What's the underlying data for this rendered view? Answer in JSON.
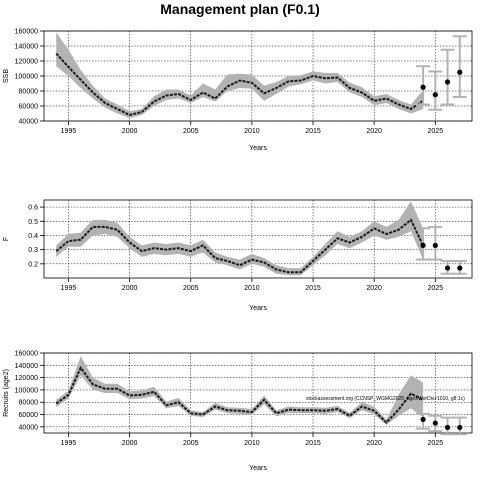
{
  "title": "Management plan (F0.1)",
  "chart_data": [
    {
      "type": "line",
      "xlabel": "Years",
      "ylabel": "SSB",
      "xlim": [
        1993,
        2028
      ],
      "ylim": [
        40000,
        160000
      ],
      "xticks": [
        1995,
        2000,
        2005,
        2010,
        2015,
        2020,
        2025
      ],
      "yticks": [
        40000,
        60000,
        80000,
        100000,
        120000,
        140000,
        160000
      ],
      "grid": true,
      "annotation": "",
      "history": {
        "x": [
          1994,
          1995,
          1996,
          1997,
          1998,
          1999,
          2000,
          2001,
          2002,
          2003,
          2004,
          2005,
          2006,
          2007,
          2008,
          2009,
          2010,
          2011,
          2012,
          2013,
          2014,
          2015,
          2016,
          2017,
          2018,
          2019,
          2020,
          2021,
          2022,
          2023,
          2024
        ],
        "y": [
          130000,
          112000,
          95000,
          78000,
          64000,
          56000,
          48000,
          52000,
          66000,
          74000,
          76000,
          68000,
          78000,
          70000,
          86000,
          94000,
          91000,
          77000,
          84000,
          93000,
          94000,
          100000,
          97000,
          98000,
          84000,
          78000,
          67000,
          70000,
          62000,
          56000,
          67000
        ],
        "lo": [
          113000,
          100000,
          84000,
          70000,
          58000,
          50000,
          44000,
          48000,
          60000,
          68000,
          70000,
          64000,
          72000,
          66000,
          80000,
          84000,
          83000,
          67000,
          76000,
          86000,
          89000,
          94000,
          90000,
          92000,
          78000,
          72000,
          61000,
          64000,
          56000,
          50000,
          56000
        ],
        "hi": [
          158000,
          135000,
          108000,
          87000,
          70000,
          62000,
          53000,
          56000,
          73000,
          82000,
          82000,
          74000,
          90000,
          82000,
          102000,
          103000,
          102000,
          87000,
          92000,
          100000,
          101000,
          106000,
          104000,
          104000,
          91000,
          85000,
          73000,
          76000,
          68000,
          62000,
          81000
        ]
      },
      "forecast": {
        "x": [
          2024,
          2025,
          2026,
          2027
        ],
        "y": [
          85000,
          75000,
          92000,
          105000
        ],
        "lo": [
          62000,
          55000,
          62000,
          72000
        ],
        "hi": [
          113000,
          106000,
          135000,
          153000
        ]
      }
    },
    {
      "type": "line",
      "xlabel": "Years",
      "ylabel": "F",
      "xlim": [
        1993,
        2028
      ],
      "ylim": [
        0.1,
        0.65
      ],
      "xticks": [
        1995,
        2000,
        2005,
        2010,
        2015,
        2020,
        2025
      ],
      "yticks": [
        0.2,
        0.3,
        0.4,
        0.5,
        0.6
      ],
      "grid": true,
      "annotation": "",
      "history": {
        "x": [
          1994,
          1995,
          1996,
          1997,
          1998,
          1999,
          2000,
          2001,
          2002,
          2003,
          2004,
          2005,
          2006,
          2007,
          2008,
          2009,
          2010,
          2011,
          2012,
          2013,
          2014,
          2015,
          2016,
          2017,
          2018,
          2019,
          2020,
          2021,
          2022,
          2023,
          2024
        ],
        "y": [
          0.29,
          0.36,
          0.37,
          0.46,
          0.46,
          0.44,
          0.35,
          0.29,
          0.31,
          0.3,
          0.31,
          0.29,
          0.33,
          0.24,
          0.22,
          0.19,
          0.23,
          0.21,
          0.16,
          0.14,
          0.14,
          0.22,
          0.3,
          0.38,
          0.35,
          0.39,
          0.45,
          0.41,
          0.44,
          0.51,
          0.33
        ],
        "lo": [
          0.25,
          0.32,
          0.32,
          0.4,
          0.41,
          0.39,
          0.31,
          0.25,
          0.27,
          0.26,
          0.27,
          0.25,
          0.28,
          0.21,
          0.19,
          0.16,
          0.2,
          0.18,
          0.13,
          0.12,
          0.12,
          0.19,
          0.26,
          0.34,
          0.31,
          0.35,
          0.4,
          0.37,
          0.39,
          0.43,
          0.23
        ],
        "hi": [
          0.33,
          0.41,
          0.42,
          0.51,
          0.51,
          0.49,
          0.39,
          0.33,
          0.35,
          0.34,
          0.35,
          0.33,
          0.37,
          0.28,
          0.25,
          0.23,
          0.27,
          0.24,
          0.19,
          0.17,
          0.17,
          0.25,
          0.34,
          0.43,
          0.39,
          0.43,
          0.5,
          0.46,
          0.51,
          0.64,
          0.45
        ]
      },
      "forecast": {
        "x": [
          2024,
          2025,
          2026,
          2027
        ],
        "y": [
          0.33,
          0.33,
          0.17,
          0.17
        ],
        "lo": [
          0.23,
          0.23,
          0.13,
          0.13
        ],
        "hi": [
          0.45,
          0.46,
          0.22,
          0.22
        ]
      }
    },
    {
      "type": "line",
      "xlabel": "Years",
      "ylabel": "Recruits (age2)",
      "xlim": [
        1993,
        2028
      ],
      "ylim": [
        30000,
        160000
      ],
      "xticks": [
        1995,
        2000,
        2005,
        2010,
        2015,
        2020,
        2025
      ],
      "yticks": [
        40000,
        60000,
        80000,
        100000,
        120000,
        140000,
        160000
      ],
      "grid": true,
      "annotation": "stockassessment.org (CCNSP_WGMG2025_age2WorDiv.r1010, g8:1c)",
      "history": {
        "x": [
          1994,
          1995,
          1996,
          1997,
          1998,
          1999,
          2000,
          2001,
          2002,
          2003,
          2004,
          2005,
          2006,
          2007,
          2008,
          2009,
          2010,
          2011,
          2012,
          2013,
          2014,
          2015,
          2016,
          2017,
          2018,
          2019,
          2020,
          2021,
          2022,
          2023,
          2024
        ],
        "y": [
          78000,
          92000,
          136000,
          109000,
          102000,
          102000,
          91000,
          92000,
          97000,
          75000,
          80000,
          62000,
          60000,
          73000,
          67000,
          66000,
          64000,
          84000,
          62000,
          68000,
          67000,
          67000,
          66000,
          69000,
          58000,
          73000,
          66000,
          47000,
          68000,
          94000,
          84000
        ],
        "lo": [
          72000,
          86000,
          124000,
          100000,
          95000,
          95000,
          85000,
          86000,
          90000,
          70000,
          74000,
          58000,
          56000,
          68000,
          62000,
          61000,
          59000,
          77000,
          57000,
          63000,
          62000,
          62000,
          61000,
          64000,
          54000,
          67000,
          60000,
          43000,
          58000,
          70000,
          55000
        ],
        "hi": [
          84000,
          99000,
          155000,
          120000,
          110000,
          110000,
          98000,
          99000,
          105000,
          81000,
          87000,
          67000,
          64000,
          79000,
          72000,
          71000,
          69000,
          91000,
          67000,
          73000,
          72000,
          72000,
          71000,
          74000,
          63000,
          80000,
          73000,
          52000,
          92000,
          124000,
          112000
        ]
      },
      "forecast": {
        "x": [
          2024,
          2025,
          2026,
          2027
        ],
        "y": [
          52000,
          46000,
          39000,
          39000
        ],
        "lo": [
          37000,
          33000,
          28000,
          28000
        ],
        "hi": [
          61000,
          58000,
          55000,
          55000
        ]
      }
    }
  ]
}
